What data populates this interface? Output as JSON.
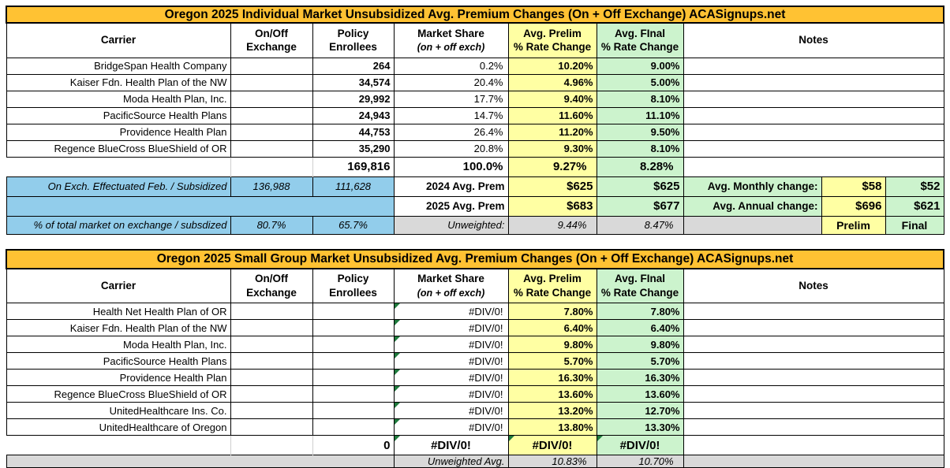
{
  "colors": {
    "orange": "#FFC233",
    "yellow": "#FFFFA3",
    "green": "#CCF3CD",
    "blue": "#92CDEB",
    "gray": "#D9D9D9",
    "triangle": "#1F7A3D"
  },
  "column_headers": {
    "carrier": "Carrier",
    "exchange_l1": "On/Off",
    "exchange_l2": "Exchange",
    "enrollees_l1": "Policy",
    "enrollees_l2": "Enrollees",
    "share_l1": "Market Share",
    "share_l2": "(on + off exch)",
    "prelim_l1": "Avg. Prelim",
    "prelim_l2": "% Rate Change",
    "final_l1": "Avg. FInal",
    "final_l2": "% Rate Change",
    "notes": "Notes"
  },
  "individual": {
    "title": "Oregon 2025 Individual Market Unsubsidized Avg. Premium Changes (On + Off Exchange) ACASignups.net",
    "rows": [
      {
        "carrier": "BridgeSpan Health Company",
        "enrollees": "264",
        "share": "0.2%",
        "prelim": "10.20%",
        "final": "9.00%"
      },
      {
        "carrier": "Kaiser Fdn. Health Plan of the NW",
        "enrollees": "34,574",
        "share": "20.4%",
        "prelim": "4.96%",
        "final": "5.00%"
      },
      {
        "carrier": "Moda Health Plan, Inc.",
        "enrollees": "29,992",
        "share": "17.7%",
        "prelim": "9.40%",
        "final": "8.10%"
      },
      {
        "carrier": "PacificSource Health Plans",
        "enrollees": "24,943",
        "share": "14.7%",
        "prelim": "11.60%",
        "final": "11.10%"
      },
      {
        "carrier": "Providence Health Plan",
        "enrollees": "44,753",
        "share": "26.4%",
        "prelim": "11.20%",
        "final": "9.50%"
      },
      {
        "carrier": "Regence BlueCross BlueShield of OR",
        "enrollees": "35,290",
        "share": "20.8%",
        "prelim": "9.30%",
        "final": "8.10%"
      }
    ],
    "totals": {
      "enrollees": "169,816",
      "share": "100.0%",
      "prelim": "9.27%",
      "final": "8.28%"
    },
    "on_exch_row": {
      "label": "On Exch. Effectuated Feb. / Subsidized",
      "on_off": "136,988",
      "enrollees": "111,628"
    },
    "prem_2024": {
      "label": "2024 Avg. Prem",
      "prelim": "$625",
      "final": "$625"
    },
    "prem_2025": {
      "label": "2025 Avg. Prem",
      "prelim": "$683",
      "final": "$677"
    },
    "pct_row": {
      "label": "% of total market on exchange / subsdized",
      "on_off": "80.7%",
      "enrollees": "65.7%"
    },
    "unweighted": {
      "label": "Unweighted:",
      "prelim": "9.44%",
      "final": "8.47%"
    },
    "monthly": {
      "label": "Avg. Monthly change:",
      "prelim": "$58",
      "final": "$52"
    },
    "annual": {
      "label": "Avg. Annual change:",
      "prelim": "$696",
      "final": "$621"
    },
    "legend": {
      "prelim": "Prelim",
      "final": "Final"
    }
  },
  "small_group": {
    "title": "Oregon 2025 Small Group Market Unsubsidized Avg. Premium Changes (On + Off Exchange) ACASignups.net",
    "rows": [
      {
        "carrier": "Health Net Health Plan of OR",
        "enrollees": "",
        "share": "#DIV/0!",
        "prelim": "7.80%",
        "final": "7.80%"
      },
      {
        "carrier": "Kaiser Fdn. Health Plan of the NW",
        "enrollees": "",
        "share": "#DIV/0!",
        "prelim": "6.40%",
        "final": "6.40%"
      },
      {
        "carrier": "Moda Health Plan, Inc.",
        "enrollees": "",
        "share": "#DIV/0!",
        "prelim": "9.80%",
        "final": "9.80%"
      },
      {
        "carrier": "PacificSource Health Plans",
        "enrollees": "",
        "share": "#DIV/0!",
        "prelim": "5.70%",
        "final": "5.70%"
      },
      {
        "carrier": "Providence Health Plan",
        "enrollees": "",
        "share": "#DIV/0!",
        "prelim": "16.30%",
        "final": "16.30%"
      },
      {
        "carrier": "Regence BlueCross BlueShield of OR",
        "enrollees": "",
        "share": "#DIV/0!",
        "prelim": "13.60%",
        "final": "13.60%"
      },
      {
        "carrier": "UnitedHealthcare Ins. Co.",
        "enrollees": "",
        "share": "#DIV/0!",
        "prelim": "13.20%",
        "final": "12.70%"
      },
      {
        "carrier": "UnitedHealthcare of Oregon",
        "enrollees": "",
        "share": "#DIV/0!",
        "prelim": "13.80%",
        "final": "13.30%"
      }
    ],
    "totals": {
      "enrollees": "0",
      "share": "#DIV/0!",
      "prelim": "#DIV/0!",
      "final": "#DIV/0!"
    },
    "unweighted": {
      "label": "Unweighted Avg.",
      "prelim": "10.83%",
      "final": "10.70%"
    }
  }
}
